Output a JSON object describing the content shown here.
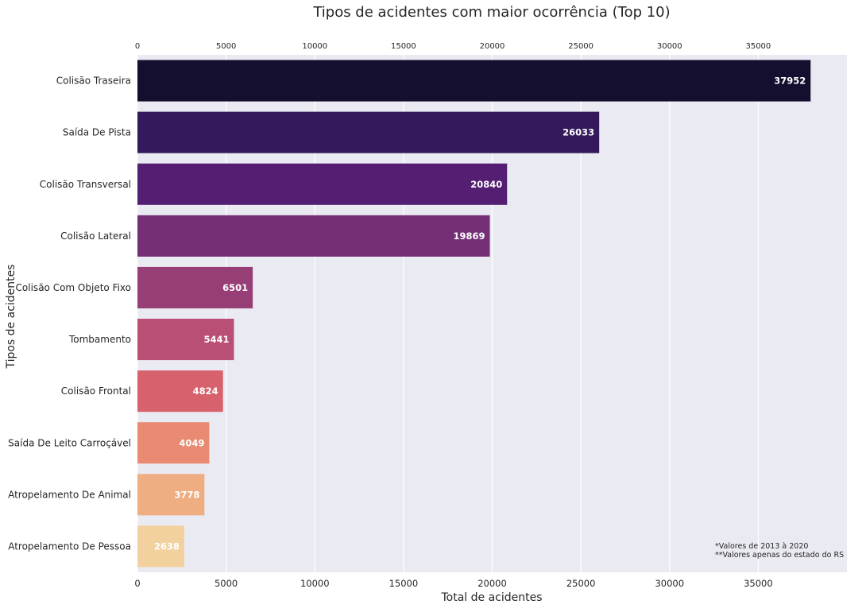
{
  "chart_data": {
    "type": "bar",
    "orientation": "horizontal",
    "title": "Tipos de acidentes com maior ocorrência (Top 10)",
    "xlabel": "Total de acidentes",
    "ylabel": "Tipos de acidentes",
    "xlim": [
      0,
      40000
    ],
    "xticks": [
      0,
      5000,
      10000,
      15000,
      20000,
      25000,
      30000,
      35000
    ],
    "grid": true,
    "categories": [
      "Colisão Traseira",
      "Saída De Pista",
      "Colisão Transversal",
      "Colisão Lateral",
      "Colisão Com Objeto Fixo",
      "Tombamento",
      "Colisão Frontal",
      "Saída De Leito Carroçável",
      "Atropelamento De Animal",
      "Atropelamento De Pessoa"
    ],
    "values": [
      37952,
      26033,
      20840,
      19869,
      6501,
      5441,
      4824,
      4049,
      3778,
      2638
    ],
    "colors": [
      "#140f2e",
      "#341a5c",
      "#541f72",
      "#742f76",
      "#983e77",
      "#b94f75",
      "#d7626e",
      "#e88b72",
      "#eeae82",
      "#f2d19f"
    ],
    "background": "#eaeaf2",
    "annotations": [
      "*Valores de 2013 à 2020",
      "**Valores apenas do estado do RS"
    ]
  }
}
